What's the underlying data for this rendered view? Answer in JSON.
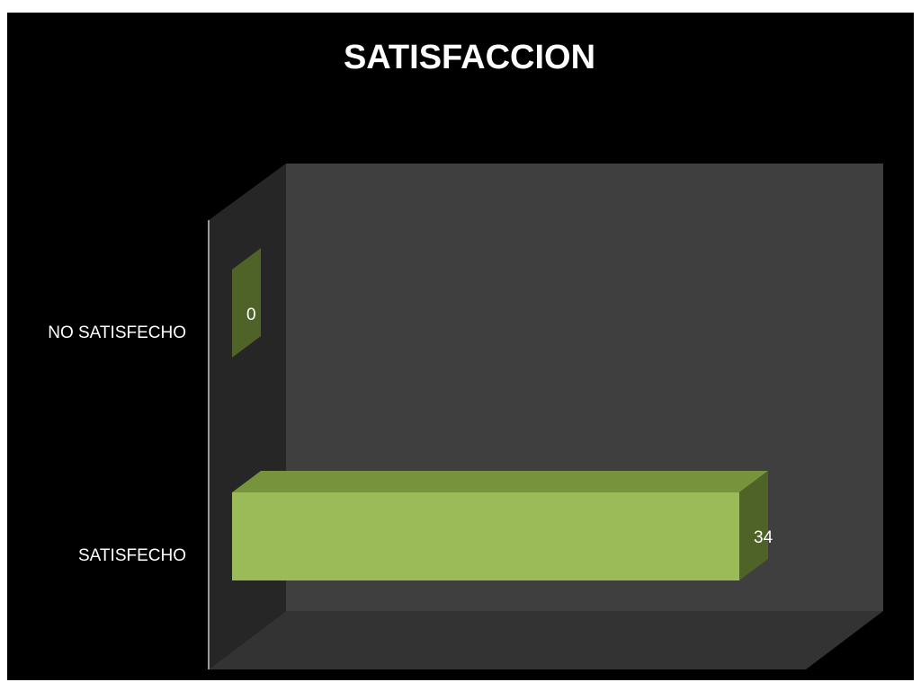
{
  "chart_data": {
    "type": "bar3d",
    "orientation": "horizontal",
    "title": "SATISFACCION",
    "categories": [
      "NO SATISFECHO",
      "SATISFECHO"
    ],
    "values": [
      0,
      34
    ],
    "colors": {
      "front": "#9bbb59",
      "top": "#77933c",
      "side": "#4f6228"
    }
  }
}
